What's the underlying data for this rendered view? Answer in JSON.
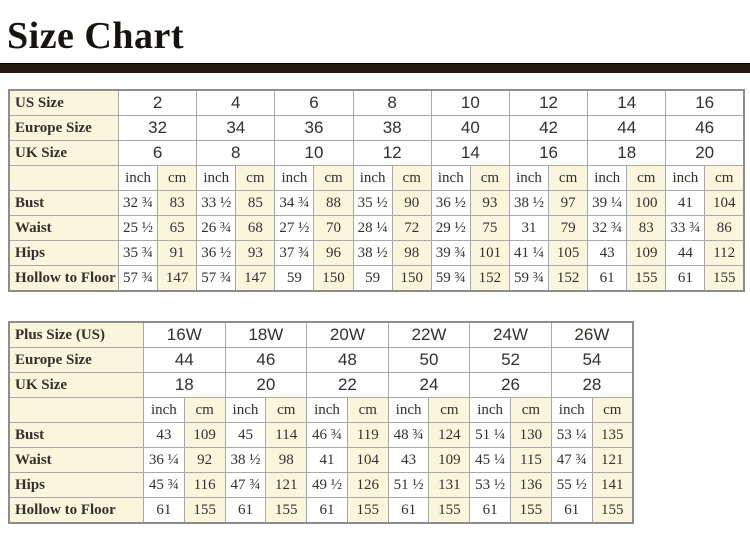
{
  "page": {
    "title": "Size Chart"
  },
  "colors": {
    "accent_bar": "#241A11",
    "cream_cell": "#FAF6DE",
    "white_cell": "#FFFFFF",
    "inner_border": "#A9A9A9",
    "outer_border": "#8D8D8D",
    "text": "#33302C"
  },
  "unit_labels": {
    "inch": "inch",
    "cm": "cm"
  },
  "tables": [
    {
      "name": "regular-size-table",
      "columns": 8,
      "size_rows": [
        {
          "label": "US Size",
          "values": [
            "2",
            "4",
            "6",
            "8",
            "10",
            "12",
            "14",
            "16"
          ]
        },
        {
          "label": "Europe Size",
          "values": [
            "32",
            "34",
            "36",
            "38",
            "40",
            "42",
            "44",
            "46"
          ]
        },
        {
          "label": "UK Size",
          "values": [
            "6",
            "8",
            "10",
            "12",
            "14",
            "16",
            "18",
            "20"
          ]
        }
      ],
      "measure_rows": [
        {
          "label": "Bust",
          "pairs": [
            [
              "32 ¾",
              "83"
            ],
            [
              "33 ½",
              "85"
            ],
            [
              "34 ¾",
              "88"
            ],
            [
              "35 ½",
              "90"
            ],
            [
              "36 ½",
              "93"
            ],
            [
              "38 ½",
              "97"
            ],
            [
              "39 ¼",
              "100"
            ],
            [
              "41",
              "104"
            ]
          ]
        },
        {
          "label": "Waist",
          "pairs": [
            [
              "25 ½",
              "65"
            ],
            [
              "26 ¾",
              "68"
            ],
            [
              "27 ½",
              "70"
            ],
            [
              "28 ¼",
              "72"
            ],
            [
              "29 ½",
              "75"
            ],
            [
              "31",
              "79"
            ],
            [
              "32 ¾",
              "83"
            ],
            [
              "33 ¾",
              "86"
            ]
          ]
        },
        {
          "label": "Hips",
          "pairs": [
            [
              "35 ¾",
              "91"
            ],
            [
              "36 ½",
              "93"
            ],
            [
              "37 ¾",
              "96"
            ],
            [
              "38 ½",
              "98"
            ],
            [
              "39 ¾",
              "101"
            ],
            [
              "41 ¼",
              "105"
            ],
            [
              "43",
              "109"
            ],
            [
              "44",
              "112"
            ]
          ]
        },
        {
          "label": "Hollow to Floor",
          "pairs": [
            [
              "57 ¾",
              "147"
            ],
            [
              "57 ¾",
              "147"
            ],
            [
              "59",
              "150"
            ],
            [
              "59",
              "150"
            ],
            [
              "59 ¾",
              "152"
            ],
            [
              "59 ¾",
              "152"
            ],
            [
              "61",
              "155"
            ],
            [
              "61",
              "155"
            ]
          ]
        }
      ]
    },
    {
      "name": "plus-size-table",
      "columns": 6,
      "size_rows": [
        {
          "label": "Plus Size (US)",
          "values": [
            "16W",
            "18W",
            "20W",
            "22W",
            "24W",
            "26W"
          ]
        },
        {
          "label": "Europe Size",
          "values": [
            "44",
            "46",
            "48",
            "50",
            "52",
            "54"
          ]
        },
        {
          "label": "UK Size",
          "values": [
            "18",
            "20",
            "22",
            "24",
            "26",
            "28"
          ]
        }
      ],
      "measure_rows": [
        {
          "label": "Bust",
          "pairs": [
            [
              "43",
              "109"
            ],
            [
              "45",
              "114"
            ],
            [
              "46 ¾",
              "119"
            ],
            [
              "48 ¾",
              "124"
            ],
            [
              "51 ¼",
              "130"
            ],
            [
              "53 ¼",
              "135"
            ]
          ]
        },
        {
          "label": "Waist",
          "pairs": [
            [
              "36 ¼",
              "92"
            ],
            [
              "38 ½",
              "98"
            ],
            [
              "41",
              "104"
            ],
            [
              "43",
              "109"
            ],
            [
              "45 ¼",
              "115"
            ],
            [
              "47 ¾",
              "121"
            ]
          ]
        },
        {
          "label": "Hips",
          "pairs": [
            [
              "45 ¾",
              "116"
            ],
            [
              "47 ¾",
              "121"
            ],
            [
              "49 ½",
              "126"
            ],
            [
              "51 ½",
              "131"
            ],
            [
              "53 ½",
              "136"
            ],
            [
              "55 ½",
              "141"
            ]
          ]
        },
        {
          "label": "Hollow to Floor",
          "pairs": [
            [
              "61",
              "155"
            ],
            [
              "61",
              "155"
            ],
            [
              "61",
              "155"
            ],
            [
              "61",
              "155"
            ],
            [
              "61",
              "155"
            ],
            [
              "61",
              "155"
            ]
          ]
        }
      ]
    }
  ]
}
